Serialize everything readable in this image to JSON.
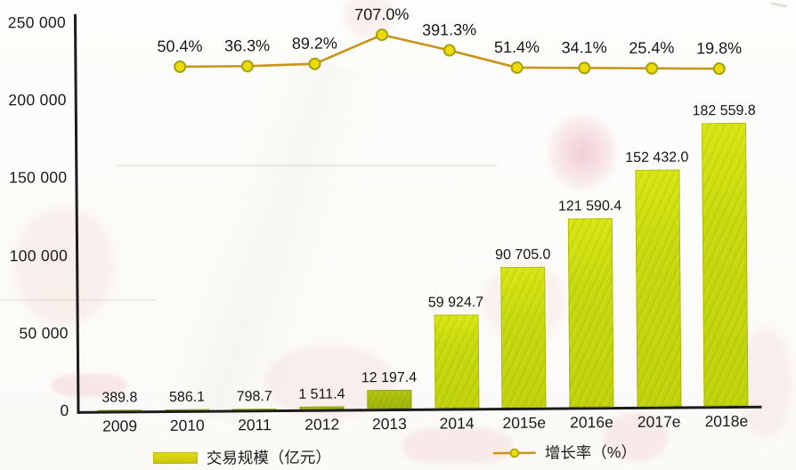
{
  "legend": {
    "bar_label": "交易规模（亿元）",
    "line_label": "增长率（%）"
  },
  "chart_data": {
    "type": "bar",
    "subtype": "combo-bar-line",
    "categories": [
      "2009",
      "2010",
      "2011",
      "2012",
      "2013",
      "2014",
      "2015e",
      "2016e",
      "2017e",
      "2018e"
    ],
    "series": [
      {
        "name": "交易规模（亿元）",
        "chart": "bar",
        "values": [
          389.8,
          586.1,
          798.7,
          1511.4,
          12197.4,
          59924.7,
          90705.0,
          121590.4,
          152432.0,
          182559.8
        ],
        "value_labels": [
          "389.8",
          "586.1",
          "798.7",
          "1 511.4",
          "12 197.4",
          "59 924.7",
          "90 705.0",
          "121 590.4",
          "152 432.0",
          "182 559.8"
        ],
        "color": "#c6d90e"
      },
      {
        "name": "增长率（%）",
        "chart": "line",
        "values": [
          null,
          50.4,
          36.3,
          89.2,
          707.0,
          391.3,
          51.4,
          34.1,
          25.4,
          19.8
        ],
        "value_labels": [
          null,
          "50.4%",
          "36.3%",
          "89.2%",
          "707.0%",
          "391.3%",
          "51.4%",
          "34.1%",
          "25.4%",
          "19.8%"
        ],
        "color": "#c8941a",
        "marker_color": "#eed90a"
      }
    ],
    "ylim": [
      0,
      250000
    ],
    "y_tick_labels": [
      "0",
      "50 000",
      "100 000",
      "150 000",
      "200 000",
      "250 000"
    ],
    "grid": false,
    "legend_position": "bottom"
  }
}
